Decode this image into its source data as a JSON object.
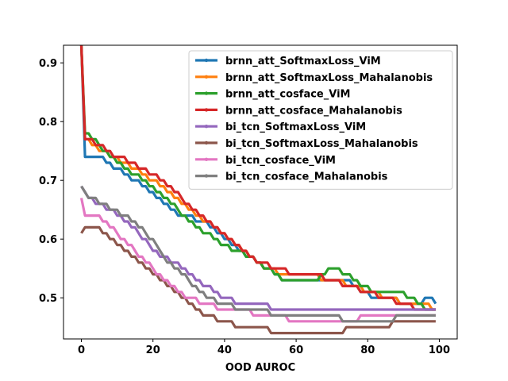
{
  "chart_data": {
    "type": "line",
    "title": "",
    "xlabel": "OOD AUROC",
    "ylabel": "",
    "xlim": [
      -5,
      105
    ],
    "ylim": [
      0.43,
      0.93
    ],
    "xticks": [
      0,
      20,
      40,
      60,
      80,
      100
    ],
    "yticks": [
      0.5,
      0.6,
      0.7,
      0.8,
      0.9
    ],
    "grid": false,
    "legend_position": "top-right",
    "series": [
      {
        "name": "brnn_att_SoftmaxLoss_ViM",
        "color": "#1f77b4",
        "points": [
          [
            0,
            0.93
          ],
          [
            1,
            0.74
          ],
          [
            5,
            0.74
          ],
          [
            10,
            0.72
          ],
          [
            20,
            0.68
          ],
          [
            27,
            0.64
          ],
          [
            35,
            0.63
          ],
          [
            40,
            0.6
          ],
          [
            47,
            0.57
          ],
          [
            52,
            0.55
          ],
          [
            57,
            0.53
          ],
          [
            62,
            0.53
          ],
          [
            68,
            0.53
          ],
          [
            74,
            0.53
          ],
          [
            78,
            0.51
          ],
          [
            82,
            0.5
          ],
          [
            86,
            0.5
          ],
          [
            90,
            0.49
          ],
          [
            95,
            0.49
          ],
          [
            97,
            0.5
          ],
          [
            99,
            0.49
          ]
        ]
      },
      {
        "name": "brnn_att_SoftmaxLoss_Mahalanobis",
        "color": "#ff7f0e",
        "points": [
          [
            0,
            0.93
          ],
          [
            1,
            0.77
          ],
          [
            6,
            0.75
          ],
          [
            12,
            0.73
          ],
          [
            20,
            0.7
          ],
          [
            28,
            0.66
          ],
          [
            35,
            0.63
          ],
          [
            42,
            0.6
          ],
          [
            47,
            0.57
          ],
          [
            52,
            0.55
          ],
          [
            57,
            0.54
          ],
          [
            63,
            0.54
          ],
          [
            70,
            0.53
          ],
          [
            76,
            0.52
          ],
          [
            80,
            0.51
          ],
          [
            86,
            0.5
          ],
          [
            90,
            0.49
          ],
          [
            95,
            0.49
          ],
          [
            99,
            0.48
          ]
        ]
      },
      {
        "name": "brnn_att_cosface_ViM",
        "color": "#2ca02c",
        "points": [
          [
            0,
            0.93
          ],
          [
            1,
            0.78
          ],
          [
            5,
            0.76
          ],
          [
            10,
            0.73
          ],
          [
            20,
            0.69
          ],
          [
            27,
            0.65
          ],
          [
            30,
            0.63
          ],
          [
            35,
            0.61
          ],
          [
            40,
            0.59
          ],
          [
            47,
            0.57
          ],
          [
            52,
            0.55
          ],
          [
            57,
            0.53
          ],
          [
            62,
            0.53
          ],
          [
            66,
            0.53
          ],
          [
            70,
            0.55
          ],
          [
            74,
            0.54
          ],
          [
            78,
            0.52
          ],
          [
            82,
            0.51
          ],
          [
            88,
            0.51
          ],
          [
            92,
            0.5
          ],
          [
            96,
            0.48
          ],
          [
            99,
            0.48
          ]
        ]
      },
      {
        "name": "brnn_att_cosface_Mahalanobis",
        "color": "#d62728",
        "points": [
          [
            0,
            0.93
          ],
          [
            1,
            0.77
          ],
          [
            5,
            0.76
          ],
          [
            10,
            0.74
          ],
          [
            14,
            0.73
          ],
          [
            20,
            0.71
          ],
          [
            28,
            0.67
          ],
          [
            35,
            0.63
          ],
          [
            40,
            0.61
          ],
          [
            45,
            0.58
          ],
          [
            50,
            0.56
          ],
          [
            55,
            0.55
          ],
          [
            60,
            0.54
          ],
          [
            65,
            0.54
          ],
          [
            70,
            0.53
          ],
          [
            75,
            0.52
          ],
          [
            80,
            0.51
          ],
          [
            85,
            0.5
          ],
          [
            90,
            0.49
          ],
          [
            95,
            0.48
          ],
          [
            99,
            0.48
          ]
        ]
      },
      {
        "name": "bi_tcn_SoftmaxLoss_ViM",
        "color": "#9467bd",
        "points": [
          [
            0,
            0.69
          ],
          [
            2,
            0.67
          ],
          [
            8,
            0.65
          ],
          [
            15,
            0.62
          ],
          [
            20,
            0.58
          ],
          [
            26,
            0.56
          ],
          [
            30,
            0.54
          ],
          [
            35,
            0.52
          ],
          [
            40,
            0.5
          ],
          [
            45,
            0.49
          ],
          [
            50,
            0.49
          ],
          [
            55,
            0.48
          ],
          [
            60,
            0.48
          ],
          [
            65,
            0.48
          ],
          [
            70,
            0.48
          ],
          [
            75,
            0.48
          ],
          [
            80,
            0.48
          ],
          [
            85,
            0.48
          ],
          [
            90,
            0.48
          ],
          [
            95,
            0.48
          ],
          [
            99,
            0.48
          ]
        ]
      },
      {
        "name": "bi_tcn_SoftmaxLoss_Mahalanobis",
        "color": "#8c564b",
        "points": [
          [
            0,
            0.61
          ],
          [
            1,
            0.62
          ],
          [
            4,
            0.62
          ],
          [
            8,
            0.6
          ],
          [
            13,
            0.58
          ],
          [
            20,
            0.54
          ],
          [
            26,
            0.51
          ],
          [
            30,
            0.49
          ],
          [
            35,
            0.47
          ],
          [
            40,
            0.46
          ],
          [
            44,
            0.45
          ],
          [
            50,
            0.45
          ],
          [
            54,
            0.44
          ],
          [
            60,
            0.44
          ],
          [
            66,
            0.44
          ],
          [
            72,
            0.44
          ],
          [
            75,
            0.45
          ],
          [
            80,
            0.45
          ],
          [
            85,
            0.45
          ],
          [
            88,
            0.46
          ],
          [
            92,
            0.46
          ],
          [
            96,
            0.46
          ],
          [
            99,
            0.46
          ]
        ]
      },
      {
        "name": "bi_tcn_cosface_ViM",
        "color": "#e377c2",
        "points": [
          [
            0,
            0.67
          ],
          [
            1,
            0.64
          ],
          [
            5,
            0.64
          ],
          [
            10,
            0.61
          ],
          [
            15,
            0.58
          ],
          [
            20,
            0.55
          ],
          [
            25,
            0.52
          ],
          [
            30,
            0.5
          ],
          [
            35,
            0.49
          ],
          [
            40,
            0.48
          ],
          [
            45,
            0.48
          ],
          [
            50,
            0.47
          ],
          [
            55,
            0.47
          ],
          [
            60,
            0.46
          ],
          [
            65,
            0.46
          ],
          [
            70,
            0.46
          ],
          [
            75,
            0.46
          ],
          [
            80,
            0.47
          ],
          [
            85,
            0.47
          ],
          [
            90,
            0.47
          ],
          [
            95,
            0.47
          ],
          [
            99,
            0.47
          ]
        ]
      },
      {
        "name": "bi_tcn_cosface_Mahalanobis",
        "color": "#7f7f7f",
        "points": [
          [
            0,
            0.69
          ],
          [
            2,
            0.67
          ],
          [
            6,
            0.66
          ],
          [
            12,
            0.64
          ],
          [
            18,
            0.61
          ],
          [
            22,
            0.58
          ],
          [
            26,
            0.55
          ],
          [
            30,
            0.53
          ],
          [
            35,
            0.5
          ],
          [
            40,
            0.49
          ],
          [
            45,
            0.48
          ],
          [
            50,
            0.48
          ],
          [
            55,
            0.47
          ],
          [
            60,
            0.47
          ],
          [
            65,
            0.47
          ],
          [
            70,
            0.47
          ],
          [
            75,
            0.46
          ],
          [
            80,
            0.46
          ],
          [
            85,
            0.46
          ],
          [
            90,
            0.47
          ],
          [
            95,
            0.47
          ],
          [
            99,
            0.47
          ]
        ]
      }
    ]
  }
}
